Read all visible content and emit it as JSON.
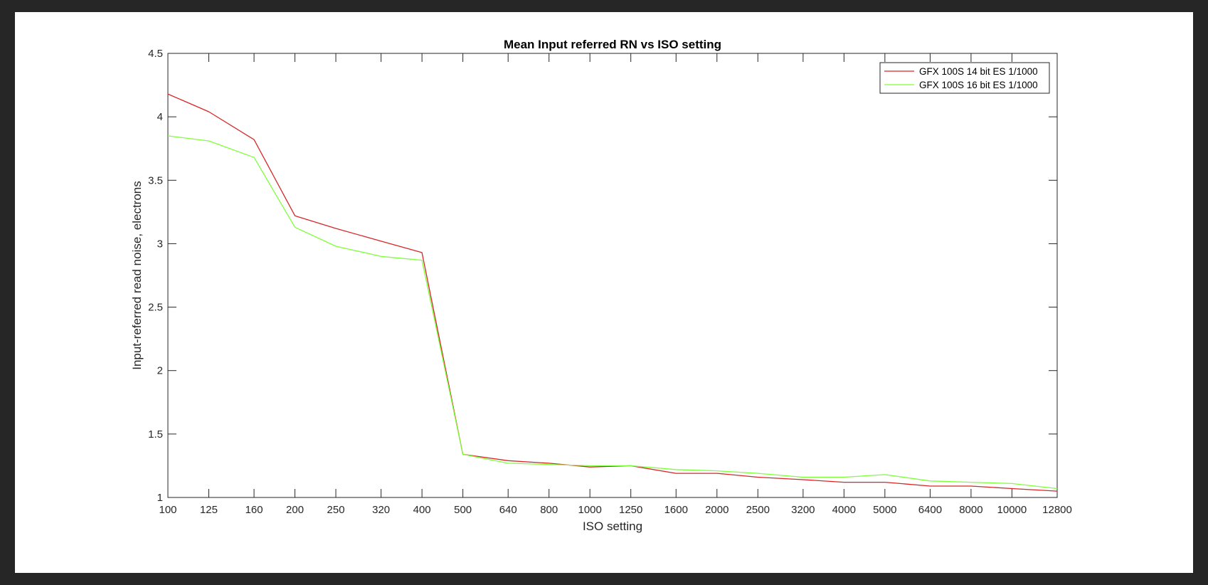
{
  "chart_data": {
    "type": "line",
    "title": "Mean Input referred RN vs ISO setting",
    "xlabel": "ISO setting",
    "ylabel": "Input-referred read noise, electrons",
    "x_scale": "log",
    "x": [
      100,
      125,
      160,
      200,
      250,
      320,
      400,
      500,
      640,
      800,
      1000,
      1250,
      1600,
      2000,
      2500,
      3200,
      4000,
      5000,
      6400,
      8000,
      10000,
      12800
    ],
    "x_tick_labels": [
      "100",
      "125",
      "160",
      "200",
      "250",
      "320",
      "400",
      "500",
      "640",
      "800",
      "1000",
      "1250",
      "1600",
      "2000",
      "2500",
      "3200",
      "4000",
      "5000",
      "6400",
      "8000",
      "10000",
      "12800"
    ],
    "ylim": [
      1,
      4.5
    ],
    "y_ticks": [
      1,
      1.5,
      2,
      2.5,
      3,
      3.5,
      4,
      4.5
    ],
    "y_tick_labels": [
      "1",
      "1.5",
      "2",
      "2.5",
      "3",
      "3.5",
      "4",
      "4.5"
    ],
    "grid": false,
    "legend_position": "top-right",
    "series": [
      {
        "name": "GFX 100S 14 bit ES 1/1000",
        "color": "#d62728",
        "values": [
          4.18,
          4.04,
          3.82,
          3.22,
          3.12,
          3.02,
          2.93,
          1.34,
          1.29,
          1.27,
          1.24,
          1.25,
          1.19,
          1.19,
          1.16,
          1.14,
          1.12,
          1.12,
          1.09,
          1.09,
          1.07,
          1.05
        ]
      },
      {
        "name": "GFX 100S 16 bit ES 1/1000",
        "color": "#7dff3a",
        "values": [
          3.85,
          3.81,
          3.68,
          3.13,
          2.98,
          2.9,
          2.87,
          1.34,
          1.27,
          1.26,
          1.25,
          1.25,
          1.22,
          1.21,
          1.19,
          1.16,
          1.16,
          1.18,
          1.13,
          1.12,
          1.11,
          1.07
        ]
      }
    ]
  }
}
